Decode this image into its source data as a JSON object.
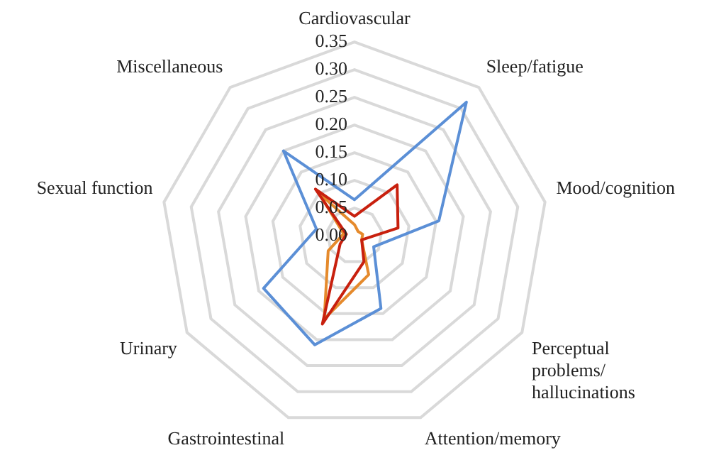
{
  "chart_data": {
    "type": "radar",
    "categories": [
      "Cardiovascular",
      "Sleep/fatigue",
      "Mood/cognition",
      "Perceptual problems/ hallucinations",
      "Attention/memory",
      "Gastrointestinal",
      "Urinary",
      "Sexual function",
      "Miscellaneous"
    ],
    "series": [
      {
        "color": "#5b8fd6",
        "values": [
          0.065,
          0.315,
          0.155,
          0.04,
          0.14,
          0.21,
          0.19,
          0.07,
          0.2
        ]
      },
      {
        "color": "#c8200e",
        "values": [
          0.035,
          0.12,
          0.08,
          0.015,
          0.05,
          0.17,
          0.03,
          0.015,
          0.11
        ]
      },
      {
        "color": "#e58a2c",
        "values": [
          0.02,
          0.01,
          0.015,
          0.015,
          0.075,
          0.16,
          0.055,
          0.02,
          0.1
        ]
      }
    ],
    "ylim": [
      0,
      0.35
    ],
    "yticks": [
      {
        "value": 0,
        "label": "0.00"
      },
      {
        "value": 0.05,
        "label": "0.05"
      },
      {
        "value": 0.1,
        "label": "0.10"
      },
      {
        "value": 0.15,
        "label": "0.15"
      },
      {
        "value": 0.2,
        "label": "0.20"
      },
      {
        "value": 0.25,
        "label": "0.25"
      },
      {
        "value": 0.3,
        "label": "0.30"
      },
      {
        "value": 0.35,
        "label": "0.35"
      }
    ],
    "grid": true,
    "legend": false,
    "marker": "none",
    "line_style": "solid"
  }
}
